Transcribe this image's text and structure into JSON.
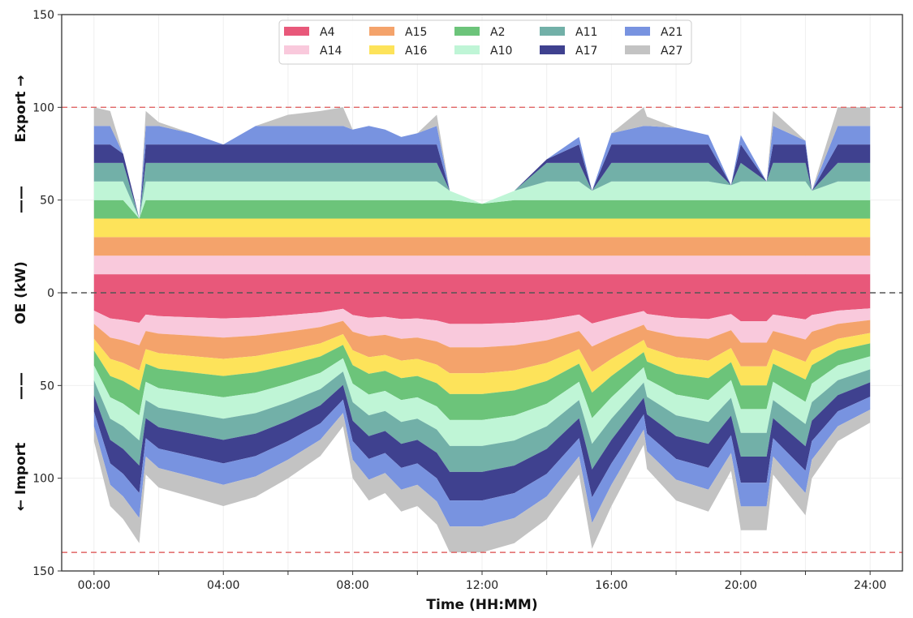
{
  "chart_data": {
    "type": "area",
    "subtype": "stacked-area (export above zero, import below zero)",
    "xlabel": "Time (HH:MM)",
    "ylabel_parts": {
      "import": "← Import",
      "sep1": "——",
      "center": "OE (kW)",
      "sep2": "——",
      "export": "Export →"
    },
    "xlim_hours": [
      -1,
      25
    ],
    "ylim": [
      -150,
      150
    ],
    "x_ticks": [
      {
        "value": 0,
        "label": "00:00"
      },
      {
        "value": 4,
        "label": "04:00"
      },
      {
        "value": 8,
        "label": "08:00"
      },
      {
        "value": 12,
        "label": "12:00"
      },
      {
        "value": 16,
        "label": "16:00"
      },
      {
        "value": 20,
        "label": "20:00"
      },
      {
        "value": 24,
        "label": "24:00"
      }
    ],
    "x_minor_ticks": [
      2,
      6,
      10,
      14,
      18,
      22
    ],
    "y_ticks": [
      {
        "value": 150,
        "label": "150"
      },
      {
        "value": 100,
        "label": "100"
      },
      {
        "value": 50,
        "label": "50"
      },
      {
        "value": 0,
        "label": "0"
      },
      {
        "value": -50,
        "label": "50"
      },
      {
        "value": -100,
        "label": "100"
      },
      {
        "value": -150,
        "label": "150"
      }
    ],
    "reference_lines": [
      {
        "value": 100,
        "style": "dashed",
        "color": "#e06666",
        "meaning": "export limit"
      },
      {
        "value": -140,
        "style": "dashed",
        "color": "#e06666",
        "meaning": "import limit"
      },
      {
        "value": 0,
        "style": "dashed",
        "color": "#555555",
        "meaning": "zero"
      }
    ],
    "legend_position": "top-center",
    "series": [
      {
        "name": "A4",
        "color": "#e8587a"
      },
      {
        "name": "A14",
        "color": "#f9c9dc"
      },
      {
        "name": "A15",
        "color": "#f4a36b"
      },
      {
        "name": "A16",
        "color": "#fde35a"
      },
      {
        "name": "A2",
        "color": "#6cc47a"
      },
      {
        "name": "A10",
        "color": "#bff5d6"
      },
      {
        "name": "A11",
        "color": "#72b0a8"
      },
      {
        "name": "A17",
        "color": "#3f418f"
      },
      {
        "name": "A21",
        "color": "#7893e0"
      },
      {
        "name": "A27",
        "color": "#c3c3c3"
      }
    ],
    "time_hours": [
      0,
      0.5,
      0.9,
      1.4,
      1.6,
      2,
      3,
      4,
      5,
      6,
      7,
      7.7,
      8,
      8.5,
      9,
      9.5,
      10,
      10.6,
      11,
      12,
      13,
      14,
      15,
      15.4,
      16,
      17,
      17.1,
      18,
      19,
      19.7,
      20,
      20.8,
      21,
      22,
      22.2,
      23,
      24
    ],
    "export_total_kw": [
      100,
      98,
      75,
      40,
      98,
      92,
      86,
      80,
      90,
      96,
      98,
      100,
      88,
      90,
      88,
      84,
      86,
      96,
      55,
      48,
      55,
      72,
      84,
      55,
      86,
      100,
      95,
      89,
      85,
      58,
      85,
      60,
      98,
      82,
      55,
      100,
      100
    ],
    "export_pattern_kw_each": 10,
    "import_total_kw": [
      -80,
      -115,
      -122,
      -135,
      -98,
      -105,
      -110,
      -115,
      -110,
      -100,
      -88,
      -72,
      -100,
      -112,
      -108,
      -118,
      -115,
      -125,
      -140,
      -140,
      -135,
      -122,
      -98,
      -138,
      -115,
      -82,
      -95,
      -112,
      -118,
      -96,
      -128,
      -128,
      -98,
      -120,
      -100,
      -80,
      -70
    ],
    "import_composition_pct": {
      "A4": 12,
      "A14": 9,
      "A15": 10,
      "A16": 8,
      "A2": 10,
      "A10": 10,
      "A11": 10,
      "A17": 11,
      "A21": 10,
      "A27": 10
    }
  }
}
